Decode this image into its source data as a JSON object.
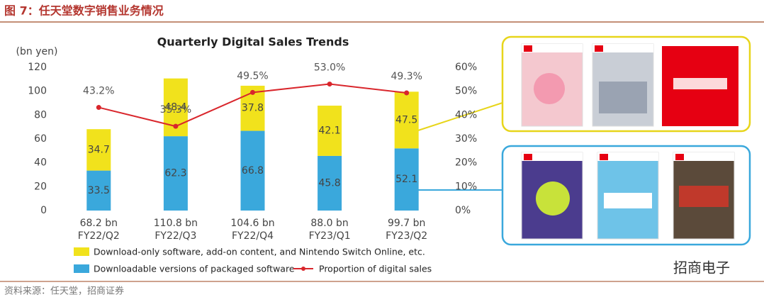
{
  "header": {
    "title": "图 7：任天堂数字销售业务情况",
    "source": "资料来源：任天堂，招商证券",
    "watermark": "招商电子"
  },
  "chart_data": {
    "type": "bar",
    "stacked": true,
    "title": "Quarterly Digital Sales Trends",
    "y_label": "(bn yen)",
    "categories": [
      "FY22/Q2",
      "FY22/Q3",
      "FY22/Q4",
      "FY23/Q1",
      "FY23/Q2"
    ],
    "category_totals": [
      "68.2 bn",
      "110.8 bn",
      "104.6 bn",
      "88.0 bn",
      "99.7 bn"
    ],
    "series": [
      {
        "name": "Downloadable versions of packaged software",
        "color": "#3aa8dc",
        "values": [
          33.5,
          62.3,
          66.8,
          45.8,
          52.1
        ]
      },
      {
        "name": "Download-only software, add-on content, and Nintendo Switch Online, etc.",
        "color": "#f1e21c",
        "values": [
          34.7,
          48.4,
          37.8,
          42.1,
          47.5
        ]
      },
      {
        "name": "Proportion of digital sales",
        "type": "line",
        "axis": "y2",
        "color": "#d9262c",
        "values": [
          43.2,
          35.3,
          49.5,
          53.0,
          49.3
        ],
        "value_labels": [
          "43.2%",
          "35.3%",
          "49.5%",
          "53.0%",
          "49.3%"
        ]
      }
    ],
    "ylim": [
      0,
      120
    ],
    "yticks": [
      0,
      20,
      40,
      60,
      80,
      100,
      120
    ],
    "y2lim": [
      0,
      60
    ],
    "y2ticks": [
      {
        "value": 0,
        "label": "0%"
      },
      {
        "value": 10,
        "label": "10%"
      },
      {
        "value": 20,
        "label": "20%"
      },
      {
        "value": 30,
        "label": "30%"
      },
      {
        "value": 40,
        "label": "40%"
      },
      {
        "value": 50,
        "label": "50%"
      },
      {
        "value": 60,
        "label": "60%"
      }
    ],
    "grid": false
  }
}
